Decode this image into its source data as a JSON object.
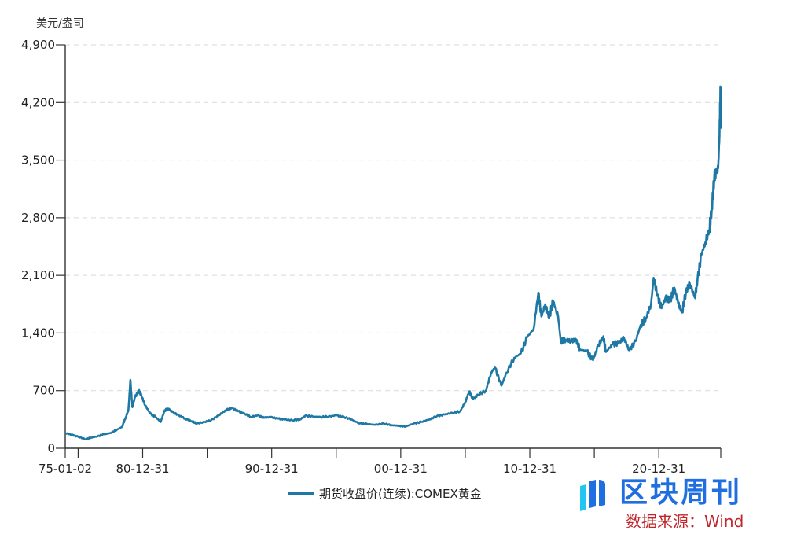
{
  "chart_data": {
    "type": "line",
    "title": "",
    "unit_label": "美元/盎司",
    "xlabel": "",
    "ylabel": "美元/盎司",
    "ylim": [
      0,
      4900
    ],
    "yticks": [
      0,
      700,
      1400,
      2100,
      2800,
      3500,
      4200,
      4900
    ],
    "ytick_labels": [
      "0",
      "700",
      "1,400",
      "2,100",
      "2,800",
      "3,500",
      "4,200",
      "4,900"
    ],
    "xlim": [
      1975.0,
      2025.8
    ],
    "xtick_labels": [
      {
        "label": "75-01-02",
        "year": 1975.0
      },
      {
        "label": "80-12-31",
        "year": 1981.0
      },
      {
        "label": "90-12-31",
        "year": 1991.0
      },
      {
        "label": "00-12-31",
        "year": 2001.0
      },
      {
        "label": "10-12-31",
        "year": 2011.0
      },
      {
        "label": "20-12-31",
        "year": 2021.0
      }
    ],
    "xtick_positions_years": [
      1975.0,
      1976.0,
      1981.0,
      1986.0,
      1991.0,
      1996.0,
      2001.0,
      2006.0,
      2011.0,
      2016.0,
      2021.0,
      2025.8
    ],
    "grid": {
      "y": true,
      "x": false,
      "style": "dashed"
    },
    "legend_position": "bottom-center",
    "series": [
      {
        "name": "期货收盘价(连续):COMEX黄金",
        "color": "#1f78a4",
        "points": [
          [
            1975.0,
            185
          ],
          [
            1975.5,
            165
          ],
          [
            1976.0,
            140
          ],
          [
            1976.6,
            110
          ],
          [
            1977.0,
            130
          ],
          [
            1977.5,
            145
          ],
          [
            1978.0,
            170
          ],
          [
            1978.5,
            185
          ],
          [
            1979.0,
            225
          ],
          [
            1979.4,
            260
          ],
          [
            1979.7,
            380
          ],
          [
            1979.9,
            470
          ],
          [
            1980.05,
            830
          ],
          [
            1980.2,
            500
          ],
          [
            1980.4,
            620
          ],
          [
            1980.7,
            700
          ],
          [
            1980.9,
            640
          ],
          [
            1981.2,
            520
          ],
          [
            1981.6,
            420
          ],
          [
            1982.0,
            380
          ],
          [
            1982.4,
            320
          ],
          [
            1982.7,
            460
          ],
          [
            1983.0,
            480
          ],
          [
            1983.3,
            440
          ],
          [
            1983.8,
            400
          ],
          [
            1984.3,
            360
          ],
          [
            1984.8,
            330
          ],
          [
            1985.2,
            300
          ],
          [
            1985.8,
            320
          ],
          [
            1986.3,
            340
          ],
          [
            1986.9,
            400
          ],
          [
            1987.4,
            460
          ],
          [
            1987.9,
            490
          ],
          [
            1988.4,
            450
          ],
          [
            1988.9,
            420
          ],
          [
            1989.4,
            380
          ],
          [
            1989.9,
            400
          ],
          [
            1990.4,
            370
          ],
          [
            1990.9,
            380
          ],
          [
            1991.5,
            360
          ],
          [
            1992.0,
            350
          ],
          [
            1992.6,
            340
          ],
          [
            1993.2,
            350
          ],
          [
            1993.6,
            395
          ],
          [
            1994.2,
            385
          ],
          [
            1994.8,
            380
          ],
          [
            1995.4,
            385
          ],
          [
            1996.0,
            400
          ],
          [
            1996.6,
            380
          ],
          [
            1997.2,
            350
          ],
          [
            1997.8,
            300
          ],
          [
            1998.4,
            295
          ],
          [
            1999.0,
            285
          ],
          [
            1999.7,
            300
          ],
          [
            2000.3,
            280
          ],
          [
            2000.9,
            272
          ],
          [
            2001.4,
            265
          ],
          [
            2002.0,
            300
          ],
          [
            2002.6,
            320
          ],
          [
            2003.2,
            350
          ],
          [
            2003.8,
            390
          ],
          [
            2004.4,
            410
          ],
          [
            2005.0,
            430
          ],
          [
            2005.6,
            450
          ],
          [
            2006.0,
            560
          ],
          [
            2006.3,
            690
          ],
          [
            2006.6,
            600
          ],
          [
            2007.0,
            650
          ],
          [
            2007.6,
            700
          ],
          [
            2008.0,
            920
          ],
          [
            2008.3,
            980
          ],
          [
            2008.8,
            760
          ],
          [
            2009.2,
            920
          ],
          [
            2009.8,
            1100
          ],
          [
            2010.3,
            1150
          ],
          [
            2010.8,
            1350
          ],
          [
            2011.3,
            1450
          ],
          [
            2011.66,
            1890
          ],
          [
            2011.9,
            1600
          ],
          [
            2012.2,
            1750
          ],
          [
            2012.5,
            1580
          ],
          [
            2012.8,
            1790
          ],
          [
            2013.2,
            1600
          ],
          [
            2013.4,
            1300
          ],
          [
            2013.8,
            1320
          ],
          [
            2014.2,
            1300
          ],
          [
            2014.6,
            1320
          ],
          [
            2014.9,
            1200
          ],
          [
            2015.4,
            1180
          ],
          [
            2015.9,
            1070
          ],
          [
            2016.3,
            1250
          ],
          [
            2016.7,
            1360
          ],
          [
            2016.9,
            1170
          ],
          [
            2017.4,
            1260
          ],
          [
            2017.9,
            1280
          ],
          [
            2018.3,
            1340
          ],
          [
            2018.7,
            1190
          ],
          [
            2019.2,
            1300
          ],
          [
            2019.6,
            1500
          ],
          [
            2020.0,
            1580
          ],
          [
            2020.4,
            1750
          ],
          [
            2020.6,
            2070
          ],
          [
            2020.9,
            1850
          ],
          [
            2021.2,
            1700
          ],
          [
            2021.5,
            1820
          ],
          [
            2021.9,
            1800
          ],
          [
            2022.2,
            1950
          ],
          [
            2022.5,
            1760
          ],
          [
            2022.8,
            1650
          ],
          [
            2023.1,
            1900
          ],
          [
            2023.4,
            2000
          ],
          [
            2023.8,
            1830
          ],
          [
            2024.0,
            2050
          ],
          [
            2024.3,
            2350
          ],
          [
            2024.6,
            2500
          ],
          [
            2024.9,
            2650
          ],
          [
            2025.1,
            2900
          ],
          [
            2025.3,
            3300
          ],
          [
            2025.45,
            3350
          ],
          [
            2025.6,
            3400
          ],
          [
            2025.7,
            3800
          ],
          [
            2025.78,
            4390
          ],
          [
            2025.82,
            3900
          ]
        ]
      }
    ]
  },
  "chart": {
    "unit_label": "美元/盎司",
    "legend_label": "期货收盘价(连续):COMEX黄金",
    "line_color": "#1f78a4",
    "grid_color": "#d9d9d9",
    "axis_color": "#333333"
  },
  "watermark": {
    "brand": "区块周刊",
    "source": "数据来源：Wind",
    "brand_color": "#1f6fe0",
    "source_color": "#c0272d"
  }
}
